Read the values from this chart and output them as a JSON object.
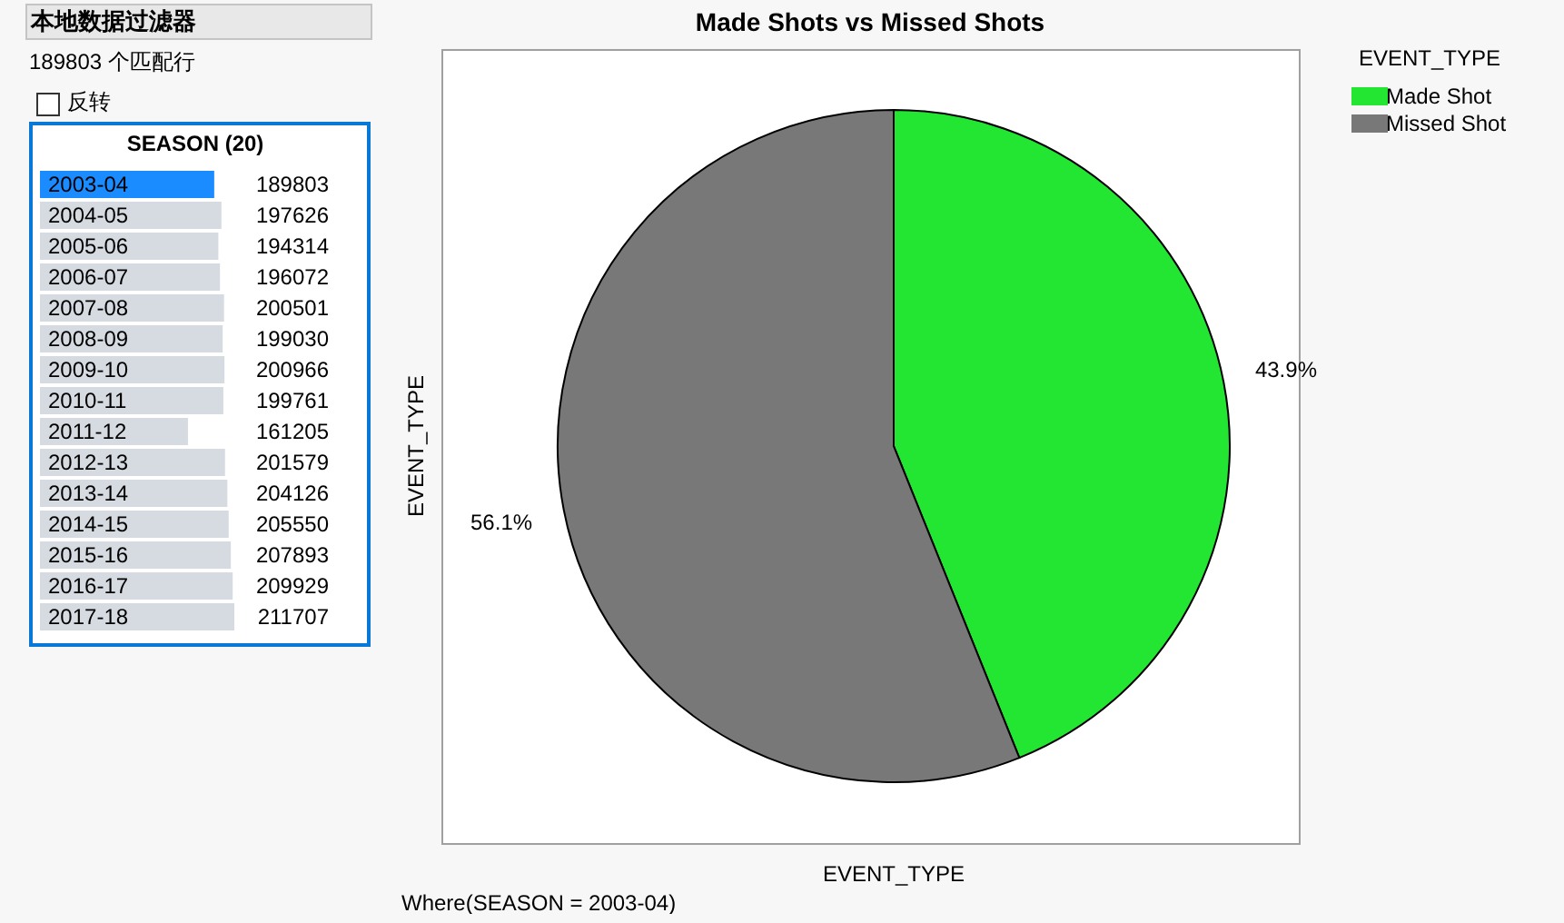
{
  "chart_data": [
    {
      "type": "bar",
      "orientation": "horizontal",
      "title": "SEASON (20)",
      "categories": [
        "2003-04",
        "2004-05",
        "2005-06",
        "2006-07",
        "2007-08",
        "2008-09",
        "2009-10",
        "2010-11",
        "2011-12",
        "2012-13",
        "2013-14",
        "2014-15",
        "2015-16",
        "2016-17",
        "2017-18"
      ],
      "values": [
        189803,
        197626,
        194314,
        196072,
        200501,
        199030,
        200966,
        199761,
        161205,
        201579,
        204126,
        205550,
        207893,
        209929,
        211707
      ],
      "colors": [
        "#1a8cff",
        "#d6dbe2",
        "#d6dbe2",
        "#d6dbe2",
        "#d6dbe2",
        "#d6dbe2",
        "#d6dbe2",
        "#d6dbe2",
        "#d6dbe2",
        "#d6dbe2",
        "#d6dbe2",
        "#d6dbe2",
        "#d6dbe2",
        "#d6dbe2",
        "#d6dbe2"
      ],
      "data_labels": true,
      "tick_labels": "y",
      "annotations": [
        "本地数据过滤器",
        "189803 个匹配行",
        "反转"
      ]
    },
    {
      "type": "pie",
      "title": "Made Shots vs Missed Shots",
      "xlabel": "EVENT_TYPE",
      "ylabel": "EVENT_TYPE",
      "legend_title": "EVENT_TYPE",
      "legend": "top right",
      "categories": [
        "Made Shot",
        "Missed Shot"
      ],
      "values": [
        43.9,
        56.1
      ],
      "colors": [
        "#22e632",
        "#787878"
      ],
      "value_labels": [
        "43.9%",
        "56.1%"
      ],
      "annotations": [
        "Where(SEASON = 2003-04)"
      ]
    }
  ]
}
